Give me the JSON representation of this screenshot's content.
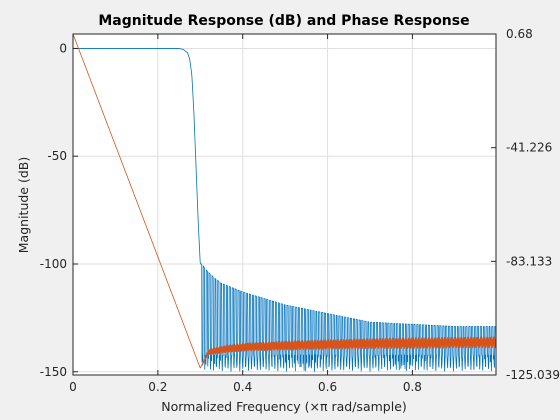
{
  "chart_data": {
    "type": "line",
    "title": "Magnitude Response (dB) and Phase Response",
    "xlabel": "Normalized Frequency (×π rad/sample)",
    "ylabel": "Magnitude (dB)",
    "xlim": [
      0,
      0.997
    ],
    "ylim_left": [
      -151.5,
      6.7
    ],
    "ylim_right": [
      -125.039,
      0.68
    ],
    "x_ticks": [
      "0",
      "0.2",
      "0.4",
      "0.6",
      "0.8"
    ],
    "x_tick_values": [
      0,
      0.2,
      0.4,
      0.6,
      0.8
    ],
    "y_ticks_left": [
      "0",
      "-50",
      "-100",
      "-150"
    ],
    "y_tick_values_left": [
      0,
      -50,
      -100,
      -150
    ],
    "y_ticks_right": [
      "0.68",
      "-41.226",
      "-83.133",
      "-125.039"
    ],
    "y_tick_values_right": [
      0.68,
      -41.226,
      -83.133,
      -125.039
    ],
    "grid": true,
    "series": [
      {
        "axis": "left",
        "color": "#0072bd",
        "kind": "stopband-oscillating",
        "x": [
          0,
          0.25,
          0.26,
          0.27,
          0.275,
          0.28,
          0.285,
          0.29,
          0.295,
          0.3,
          0.305,
          0.31,
          0.33,
          0.35,
          0.4,
          0.5,
          0.6,
          0.7,
          0.8,
          0.9,
          0.997
        ],
        "envelope": [
          0,
          0,
          -0.5,
          -2,
          -5,
          -12,
          -30,
          -55,
          -80,
          -100,
          -100,
          -102,
          -106,
          -109,
          -113,
          -119,
          -123,
          -127,
          -128,
          -129,
          -129
        ],
        "floor": -150
      },
      {
        "axis": "right",
        "color": "#d95319",
        "kind": "ripple",
        "x": [
          0,
          0.3,
          0.32,
          0.36,
          0.4,
          0.5,
          0.6,
          0.7,
          0.8,
          0.9,
          0.997
        ],
        "values": [
          0.68,
          -122.5,
          -116.5,
          -115.5,
          -114.8,
          -114.2,
          -113.8,
          -113.5,
          -113.3,
          -113.1,
          -113.0
        ],
        "ripple": [
          0,
          0,
          1.2,
          1.5,
          1.6,
          1.8,
          1.9,
          2.0,
          2.1,
          2.1,
          2.1
        ]
      }
    ]
  },
  "colors": {
    "axes_bg": "#ffffff",
    "figure_bg": "#f0f0f0",
    "grid": "#dfdfdf",
    "axis": "#262626"
  }
}
